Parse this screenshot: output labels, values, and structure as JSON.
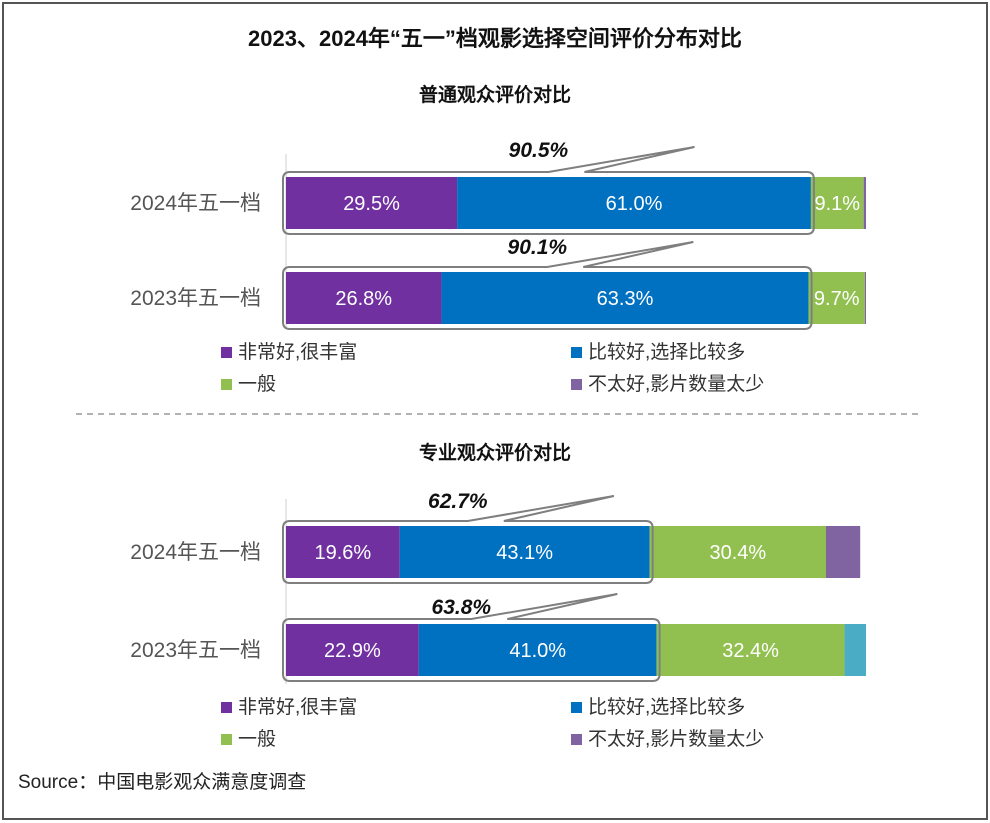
{
  "title": "2023、2024年“五一”档观影选择空间评价分布对比",
  "source": "Source：中国电影观众满意度调查",
  "colors": {
    "very_good": "#7030a0",
    "good": "#0070c0",
    "average": "#92c050",
    "bad": "#8064a2",
    "bad_alt": "#4bacc6"
  },
  "legend": [
    {
      "label": "非常好,很丰富",
      "color": "#7030a0"
    },
    {
      "label": "比较好,选择比较多",
      "color": "#0070c0"
    },
    {
      "label": "一般",
      "color": "#92c050"
    },
    {
      "label": "不太好,影片数量太少",
      "color": "#8064a2"
    }
  ],
  "chart_data": [
    {
      "type": "bar",
      "stacked": true,
      "orientation": "horizontal",
      "title": "普通观众评价对比",
      "categories": [
        "2024年五一档",
        "2023年五一档"
      ],
      "series": [
        {
          "name": "非常好,很丰富",
          "values": [
            29.5,
            26.8
          ]
        },
        {
          "name": "比较好,选择比较多",
          "values": [
            61.0,
            63.3
          ]
        },
        {
          "name": "一般",
          "values": [
            9.1,
            9.7
          ]
        },
        {
          "name": "不太好,影片数量太少",
          "values": [
            0.4,
            0.2
          ]
        }
      ],
      "labels": [
        [
          "29.5%",
          "61.0%",
          "9.1%",
          ""
        ],
        [
          "26.8%",
          "63.3%",
          "9.7%",
          ""
        ]
      ],
      "callouts": [
        "90.5%",
        "90.1%"
      ],
      "xlim": [
        0,
        100
      ]
    },
    {
      "type": "bar",
      "stacked": true,
      "orientation": "horizontal",
      "title": "专业观众评价对比",
      "categories": [
        "2024年五一档",
        "2023年五一档"
      ],
      "series": [
        {
          "name": "非常好,很丰富",
          "values": [
            19.6,
            22.9
          ]
        },
        {
          "name": "比较好,选择比较多",
          "values": [
            43.1,
            41.0
          ]
        },
        {
          "name": "一般",
          "values": [
            30.4,
            32.4
          ]
        },
        {
          "name": "不太好,影片数量太少",
          "values": [
            5.9,
            3.7
          ]
        }
      ],
      "labels": [
        [
          "19.6%",
          "43.1%",
          "30.4%",
          ""
        ],
        [
          "22.9%",
          "41.0%",
          "32.4%",
          ""
        ]
      ],
      "callouts": [
        "62.7%",
        "63.8%"
      ],
      "xlim": [
        0,
        100
      ]
    }
  ]
}
